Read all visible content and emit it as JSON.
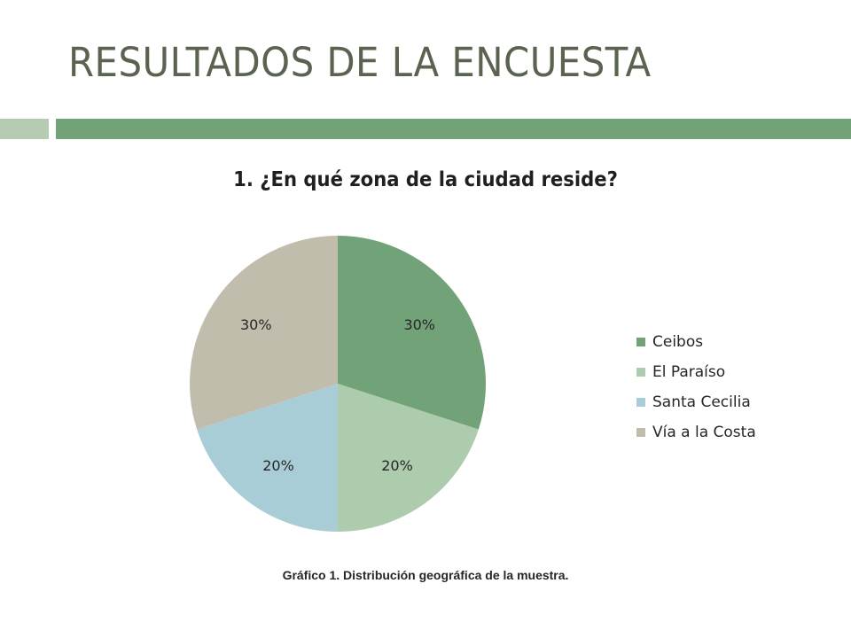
{
  "slide": {
    "title": "RESULTADOS DE LA ENCUESTA",
    "band_colors": {
      "left": "#b5ccb3",
      "right": "#72a277"
    }
  },
  "caption": "Gráfico 1. Distribución geográfica de la muestra.",
  "chart_data": {
    "type": "pie",
    "title": "1. ¿En qué zona de la ciudad reside?",
    "categories": [
      "Ceibos",
      "El Paraíso",
      "Santa Cecilia",
      "Vía a la Costa"
    ],
    "values": [
      30,
      20,
      20,
      30
    ],
    "data_labels": [
      "30%",
      "20%",
      "20%",
      "30%"
    ],
    "colors": [
      "#72a277",
      "#adcbad",
      "#a9cdd6",
      "#c1bdad"
    ],
    "start_angle": "12 o'clock",
    "direction": "clockwise",
    "legend": "right"
  }
}
